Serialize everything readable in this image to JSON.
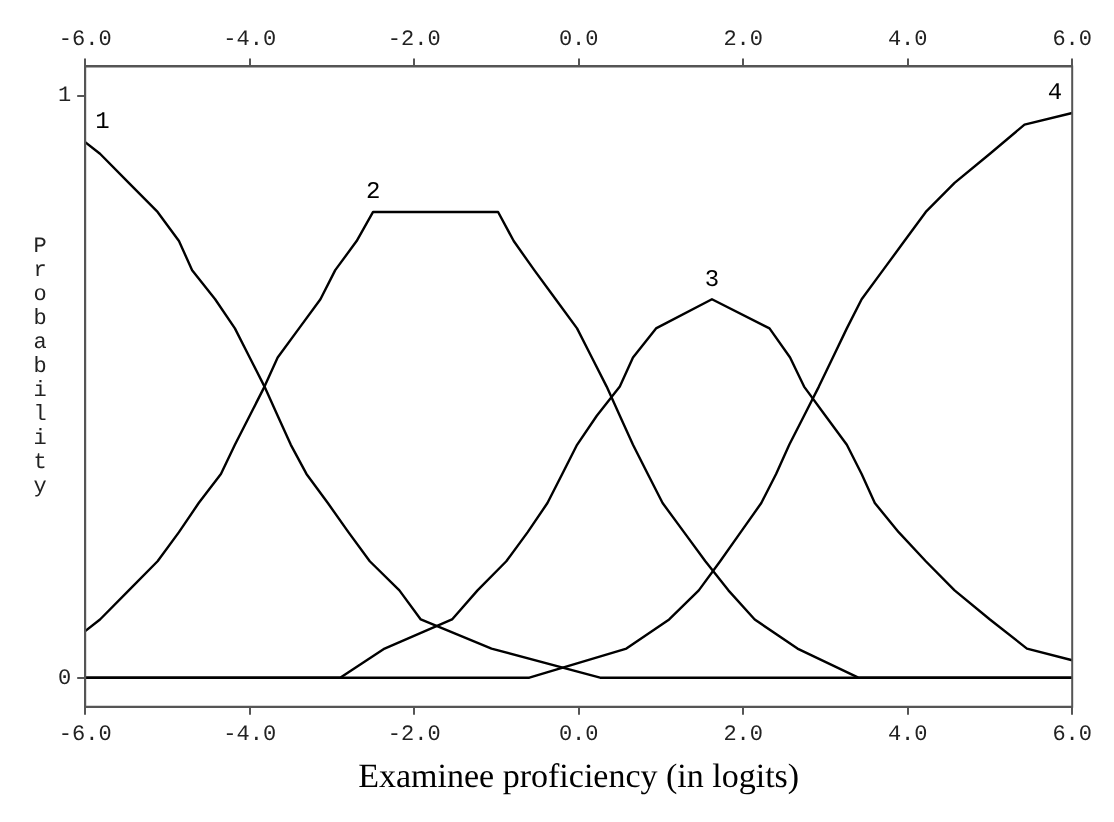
{
  "chart_data": {
    "type": "line",
    "xlabel": "Examinee proficiency (in logits)",
    "ylabel": "Probability",
    "xlim": [
      -6,
      6
    ],
    "xticks": [
      {
        "value": -6,
        "label": "-6.0"
      },
      {
        "value": -4,
        "label": "-4.0"
      },
      {
        "value": -2,
        "label": "-2.0"
      },
      {
        "value": 0,
        "label": "0.0"
      },
      {
        "value": 2,
        "label": "2.0"
      },
      {
        "value": 4,
        "label": "4.0"
      },
      {
        "value": 6,
        "label": "6.0"
      }
    ],
    "x2lim": [
      -6,
      6
    ],
    "x2ticks": [
      {
        "value": -6,
        "label": "-6.0"
      },
      {
        "value": -4,
        "label": "-4.0"
      },
      {
        "value": -2,
        "label": "-2.0"
      },
      {
        "value": 0,
        "label": "0.0"
      },
      {
        "value": 2,
        "label": "2.0"
      },
      {
        "value": 4,
        "label": "4.0"
      },
      {
        "value": 6,
        "label": "6.0"
      }
    ],
    "ylim": [
      -0.05,
      1.05
    ],
    "yticks": [
      0,
      1
    ],
    "marker": "none",
    "line_style": "solid",
    "series": [
      {
        "name": "1",
        "color": "#000000",
        "x": [
          -6,
          -5.82,
          -5.47,
          -5.12,
          -4.86,
          -4.7,
          -4.42,
          -4.18,
          -4.0,
          -3.82,
          -3.66,
          -3.5,
          -3.31,
          -3.05,
          -2.8,
          -2.54,
          -2.18,
          -1.92,
          -1.06,
          0.26,
          6
        ],
        "values": [
          0.92,
          0.9,
          0.85,
          0.8,
          0.75,
          0.7,
          0.65,
          0.6,
          0.55,
          0.5,
          0.45,
          0.4,
          0.35,
          0.3,
          0.25,
          0.2,
          0.15,
          0.1,
          0.05,
          0,
          0
        ]
      },
      {
        "name": "2",
        "color": "#000000",
        "x": [
          -6,
          -5.82,
          -5.47,
          -5.12,
          -4.86,
          -4.62,
          -4.35,
          -4.18,
          -4.0,
          -3.82,
          -3.66,
          -3.4,
          -3.14,
          -2.96,
          -2.7,
          -2.5,
          -1.74,
          -0.98,
          -0.79,
          -0.54,
          -0.28,
          -0.02,
          0.16,
          0.34,
          0.5,
          0.66,
          0.84,
          1.02,
          1.28,
          1.54,
          1.82,
          2.14,
          2.66,
          3.4,
          6
        ],
        "values": [
          0.08,
          0.1,
          0.15,
          0.2,
          0.25,
          0.3,
          0.35,
          0.4,
          0.45,
          0.5,
          0.55,
          0.6,
          0.65,
          0.7,
          0.75,
          0.8,
          0.8,
          0.8,
          0.75,
          0.7,
          0.65,
          0.6,
          0.55,
          0.5,
          0.45,
          0.4,
          0.35,
          0.3,
          0.25,
          0.2,
          0.15,
          0.1,
          0.05,
          0,
          0
        ]
      },
      {
        "name": "3",
        "color": "#000000",
        "x": [
          -6,
          -2.9,
          -2.36,
          -1.54,
          -1.23,
          -0.88,
          -0.62,
          -0.38,
          -0.2,
          -0.02,
          0.22,
          0.5,
          0.66,
          0.94,
          1.62,
          2.32,
          2.57,
          2.74,
          3.0,
          3.26,
          3.44,
          3.6,
          3.89,
          4.22,
          4.57,
          5.0,
          5.45,
          6
        ],
        "values": [
          0,
          0,
          0.05,
          0.1,
          0.15,
          0.2,
          0.25,
          0.3,
          0.35,
          0.4,
          0.45,
          0.5,
          0.55,
          0.6,
          0.65,
          0.6,
          0.55,
          0.5,
          0.45,
          0.4,
          0.35,
          0.3,
          0.25,
          0.2,
          0.15,
          0.1,
          0.05,
          0.03
        ]
      },
      {
        "name": "4",
        "color": "#000000",
        "x": [
          -6,
          -0.6,
          0.58,
          1.1,
          1.46,
          1.72,
          1.97,
          2.22,
          2.4,
          2.56,
          2.74,
          2.92,
          3.09,
          3.26,
          3.44,
          3.7,
          3.96,
          4.22,
          4.57,
          5.0,
          5.42,
          6
        ],
        "values": [
          0,
          0,
          0.05,
          0.1,
          0.15,
          0.2,
          0.25,
          0.3,
          0.35,
          0.4,
          0.45,
          0.5,
          0.55,
          0.6,
          0.65,
          0.7,
          0.75,
          0.8,
          0.85,
          0.9,
          0.95,
          0.97
        ]
      }
    ]
  }
}
